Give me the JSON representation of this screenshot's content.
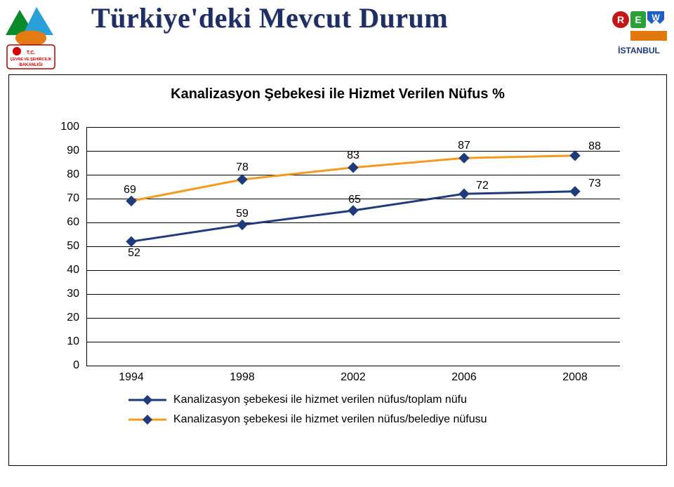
{
  "title": "Türkiye'deki Mevcut Durum",
  "logos": {
    "left_alt": "T.C. Çevre ve Şehircilik Bakanlığı",
    "right_line1": "REW",
    "right_line2": "İSTANBUL"
  },
  "chart": {
    "type": "line",
    "title": "Kanalizasyon Şebekesi ile Hizmet Verilen Nüfus %",
    "title_fontsize": 20,
    "label_fontsize": 16,
    "background_color": "#ffffff",
    "gridline_color": "#000000",
    "years": [
      "1994",
      "1998",
      "2002",
      "2006",
      "2008"
    ],
    "ylim": [
      0,
      100
    ],
    "yticks": [
      0,
      10,
      20,
      30,
      40,
      50,
      60,
      70,
      80,
      90,
      100
    ],
    "series": [
      {
        "key": "toplam",
        "label": "Kanalizasyon şebekesi ile hizmet verilen nüfus/toplam nüfu",
        "color": "#1f3b7b",
        "line_width": 3,
        "marker": "diamond",
        "values": [
          52,
          59,
          65,
          72,
          73
        ]
      },
      {
        "key": "belediye",
        "label": "Kanalizasyon şebekesi ile hizmet verilen nüfus/belediye nüfusu",
        "color": "#f39a1f",
        "line_width": 3,
        "marker": "diamond",
        "values": [
          69,
          78,
          83,
          87,
          88
        ]
      }
    ]
  }
}
